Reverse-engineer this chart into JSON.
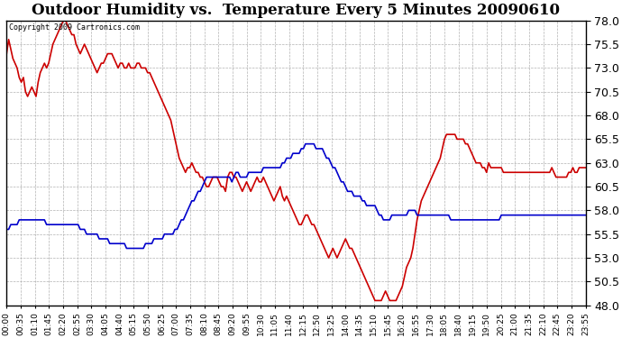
{
  "title": "Outdoor Humidity vs.  Temperature Every 5 Minutes 20090610",
  "copyright": "Copyright 2009 Cartronics.com",
  "background_color": "#ffffff",
  "plot_background": "#ffffff",
  "grid_color": "#aaaaaa",
  "red_color": "#cc0000",
  "blue_color": "#0000cc",
  "ylim": [
    48.0,
    78.0
  ],
  "yticks": [
    48.0,
    50.5,
    53.0,
    55.5,
    58.0,
    60.5,
    63.0,
    65.5,
    68.0,
    70.5,
    73.0,
    75.5,
    78.0
  ],
  "xtick_labels": [
    "00:00",
    "00:35",
    "01:10",
    "01:45",
    "02:20",
    "02:55",
    "03:30",
    "04:05",
    "04:40",
    "05:15",
    "05:50",
    "06:25",
    "07:00",
    "07:35",
    "08:10",
    "08:45",
    "09:20",
    "09:55",
    "10:30",
    "11:05",
    "11:40",
    "12:15",
    "12:50",
    "13:25",
    "14:00",
    "14:35",
    "15:10",
    "15:45",
    "16:20",
    "16:55",
    "17:30",
    "18:05",
    "18:40",
    "19:15",
    "19:50",
    "20:25",
    "21:00",
    "21:35",
    "22:10",
    "22:45",
    "23:20",
    "23:55"
  ],
  "red_humidity": [
    74.5,
    76.0,
    75.0,
    74.0,
    73.5,
    73.0,
    72.0,
    71.5,
    72.0,
    70.5,
    70.0,
    70.5,
    71.0,
    70.5,
    70.0,
    71.5,
    72.5,
    73.0,
    73.5,
    73.0,
    73.5,
    74.5,
    75.5,
    76.0,
    76.5,
    77.0,
    77.5,
    78.0,
    78.0,
    77.5,
    77.0,
    76.5,
    76.5,
    75.5,
    75.0,
    74.5,
    75.0,
    75.5,
    75.0,
    74.5,
    74.0,
    73.5,
    73.0,
    72.5,
    73.0,
    73.5,
    73.5,
    74.0,
    74.5,
    74.5,
    74.5,
    74.0,
    73.5,
    73.0,
    73.5,
    73.5,
    73.0,
    73.0,
    73.5,
    73.0,
    73.0,
    73.0,
    73.5,
    73.5,
    73.0,
    73.0,
    73.0,
    72.5,
    72.5,
    72.0,
    71.5,
    71.0,
    70.5,
    70.0,
    69.5,
    69.0,
    68.5,
    68.0,
    67.5,
    66.5,
    65.5,
    64.5,
    63.5,
    63.0,
    62.5,
    62.0,
    62.5,
    62.5,
    63.0,
    62.5,
    62.0,
    62.0,
    61.5,
    61.5,
    61.0,
    60.5,
    60.5,
    61.0,
    61.5,
    61.5,
    61.5,
    61.0,
    60.5,
    60.5,
    60.0,
    61.5,
    62.0,
    62.0,
    61.5,
    61.5,
    61.0,
    60.5,
    60.0,
    60.5,
    61.0,
    60.5,
    60.0,
    60.5,
    61.0,
    61.5,
    61.0,
    61.0,
    61.5,
    61.0,
    60.5,
    60.0,
    59.5,
    59.0,
    59.5,
    60.0,
    60.5,
    59.5,
    59.0,
    59.5,
    59.0,
    58.5,
    58.0,
    57.5,
    57.0,
    56.5,
    56.5,
    57.0,
    57.5,
    57.5,
    57.0,
    56.5,
    56.5,
    56.0,
    55.5,
    55.0,
    54.5,
    54.0,
    53.5,
    53.0,
    53.5,
    54.0,
    53.5,
    53.0,
    53.5,
    54.0,
    54.5,
    55.0,
    54.5,
    54.0,
    54.0,
    53.5,
    53.0,
    52.5,
    52.0,
    51.5,
    51.0,
    50.5,
    50.0,
    49.5,
    49.0,
    48.5,
    48.5,
    48.5,
    48.5,
    49.0,
    49.5,
    49.0,
    48.5,
    48.5,
    48.5,
    48.5,
    49.0,
    49.5,
    50.0,
    51.0,
    52.0,
    52.5,
    53.0,
    54.0,
    55.5,
    57.0,
    58.0,
    59.0,
    59.5,
    60.0,
    60.5,
    61.0,
    61.5,
    62.0,
    62.5,
    63.0,
    63.5,
    64.5,
    65.5,
    66.0,
    66.0,
    66.0,
    66.0,
    66.0,
    65.5,
    65.5,
    65.5,
    65.5,
    65.0,
    65.0,
    64.5,
    64.0,
    63.5,
    63.0,
    63.0,
    63.0,
    62.5,
    62.5,
    62.0,
    63.0,
    62.5,
    62.5,
    62.5,
    62.5,
    62.5,
    62.5,
    62.0,
    62.0,
    62.0,
    62.0,
    62.0,
    62.0,
    62.0,
    62.0,
    62.0,
    62.0,
    62.0,
    62.0,
    62.0,
    62.0,
    62.0,
    62.0,
    62.0,
    62.0,
    62.0,
    62.0,
    62.0,
    62.0,
    62.0,
    62.5,
    62.0,
    61.5,
    61.5,
    61.5,
    61.5,
    61.5,
    61.5,
    62.0,
    62.0,
    62.5,
    62.0,
    62.0,
    62.5,
    62.5,
    62.5,
    62.5
  ],
  "blue_temp": [
    56.0,
    56.0,
    56.5,
    56.5,
    56.5,
    56.5,
    57.0,
    57.0,
    57.0,
    57.0,
    57.0,
    57.0,
    57.0,
    57.0,
    57.0,
    57.0,
    57.0,
    57.0,
    57.0,
    56.5,
    56.5,
    56.5,
    56.5,
    56.5,
    56.5,
    56.5,
    56.5,
    56.5,
    56.5,
    56.5,
    56.5,
    56.5,
    56.5,
    56.5,
    56.5,
    56.0,
    56.0,
    56.0,
    55.5,
    55.5,
    55.5,
    55.5,
    55.5,
    55.5,
    55.0,
    55.0,
    55.0,
    55.0,
    55.0,
    54.5,
    54.5,
    54.5,
    54.5,
    54.5,
    54.5,
    54.5,
    54.5,
    54.0,
    54.0,
    54.0,
    54.0,
    54.0,
    54.0,
    54.0,
    54.0,
    54.0,
    54.5,
    54.5,
    54.5,
    54.5,
    55.0,
    55.0,
    55.0,
    55.0,
    55.0,
    55.5,
    55.5,
    55.5,
    55.5,
    55.5,
    56.0,
    56.0,
    56.5,
    57.0,
    57.0,
    57.5,
    58.0,
    58.5,
    59.0,
    59.0,
    59.5,
    60.0,
    60.0,
    60.5,
    61.0,
    61.5,
    61.5,
    61.5,
    61.5,
    61.5,
    61.5,
    61.5,
    61.5,
    61.5,
    61.5,
    61.5,
    61.5,
    61.0,
    61.5,
    62.0,
    62.0,
    61.5,
    61.5,
    61.5,
    61.5,
    62.0,
    62.0,
    62.0,
    62.0,
    62.0,
    62.0,
    62.0,
    62.5,
    62.5,
    62.5,
    62.5,
    62.5,
    62.5,
    62.5,
    62.5,
    62.5,
    63.0,
    63.0,
    63.5,
    63.5,
    63.5,
    64.0,
    64.0,
    64.0,
    64.0,
    64.5,
    64.5,
    65.0,
    65.0,
    65.0,
    65.0,
    65.0,
    64.5,
    64.5,
    64.5,
    64.5,
    64.0,
    63.5,
    63.5,
    63.0,
    62.5,
    62.5,
    62.0,
    61.5,
    61.0,
    61.0,
    60.5,
    60.0,
    60.0,
    60.0,
    59.5,
    59.5,
    59.5,
    59.5,
    59.0,
    59.0,
    58.5,
    58.5,
    58.5,
    58.5,
    58.5,
    58.0,
    57.5,
    57.5,
    57.0,
    57.0,
    57.0,
    57.0,
    57.5,
    57.5,
    57.5,
    57.5,
    57.5,
    57.5,
    57.5,
    57.5,
    58.0,
    58.0,
    58.0,
    58.0,
    57.5,
    57.5,
    57.5,
    57.5,
    57.5,
    57.5,
    57.5,
    57.5,
    57.5,
    57.5,
    57.5,
    57.5,
    57.5,
    57.5,
    57.5,
    57.5,
    57.0,
    57.0,
    57.0,
    57.0,
    57.0,
    57.0,
    57.0,
    57.0,
    57.0,
    57.0,
    57.0,
    57.0,
    57.0,
    57.0,
    57.0,
    57.0,
    57.0,
    57.0,
    57.0,
    57.0,
    57.0,
    57.0,
    57.0,
    57.0,
    57.5,
    57.5,
    57.5,
    57.5,
    57.5,
    57.5,
    57.5,
    57.5,
    57.5,
    57.5,
    57.5,
    57.5,
    57.5,
    57.5,
    57.5,
    57.5,
    57.5,
    57.5,
    57.5,
    57.5,
    57.5,
    57.5,
    57.5,
    57.5,
    57.5,
    57.5,
    57.5,
    57.5,
    57.5,
    57.5,
    57.5,
    57.5,
    57.5,
    57.5,
    57.5,
    57.5,
    57.5,
    57.5,
    57.5,
    57.5,
    57.5,
    57.5,
    57.5,
    57.5,
    57.5,
    57.5,
    57.5,
    57.5,
    57.5
  ]
}
